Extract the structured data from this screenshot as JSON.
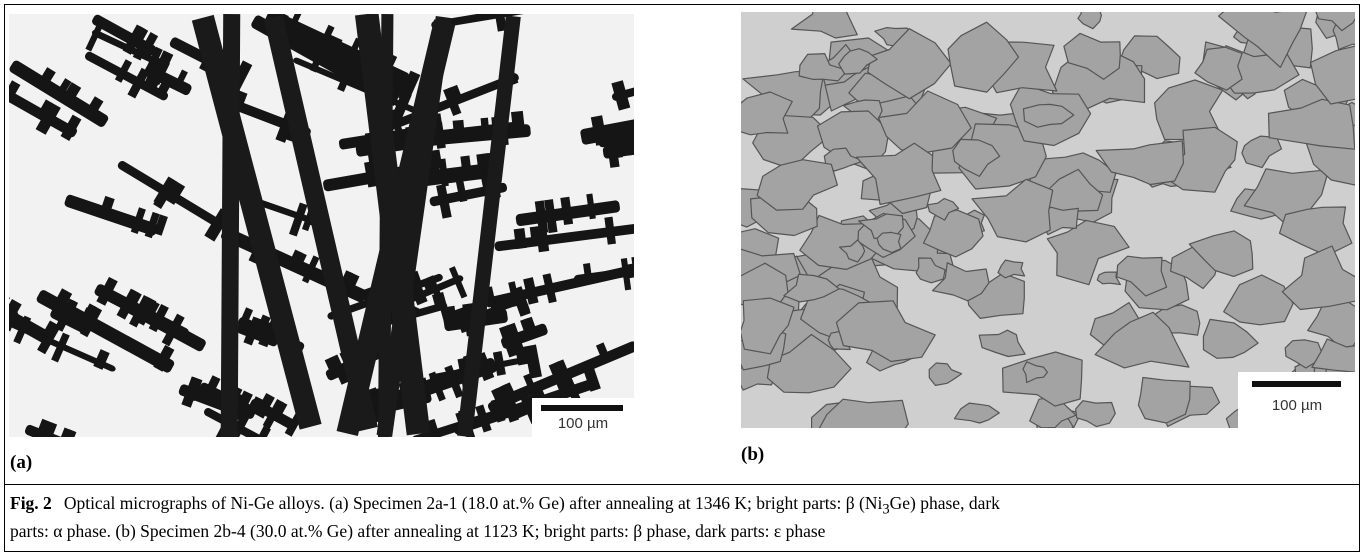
{
  "panels": [
    {
      "label": "(a)",
      "scale_bar": "100 µm"
    },
    {
      "label": "(b)",
      "scale_bar": "100 µm"
    }
  ],
  "caption": {
    "fig_label": "Fig. 2",
    "segments": [
      "Optical micrographs of Ni-Ge alloys. (a) Specimen 2a-1 (18.0 at.% Ge) after annealing at 1346 K; bright parts: β (Ni",
      "3",
      "Ge) phase, dark",
      "parts: α phase. (b) Specimen 2b-4 (30.0 at.% Ge) after annealing at 1123 K; bright parts: β phase, dark parts: ε phase"
    ]
  }
}
